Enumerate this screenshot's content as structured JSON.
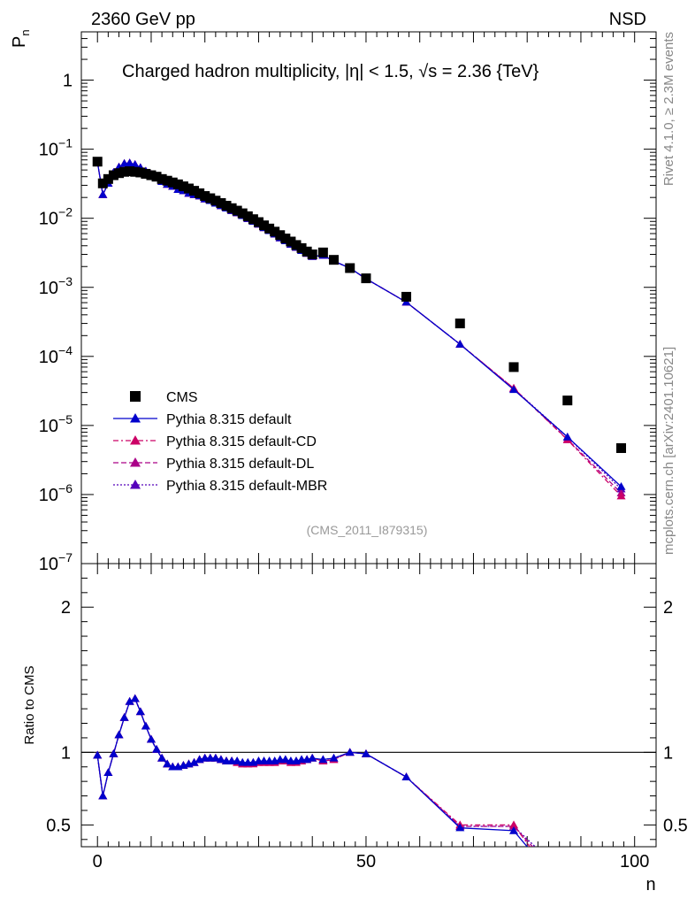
{
  "header": {
    "left": "2360 GeV pp",
    "right": "NSD"
  },
  "side_labels": {
    "rivet": "Rivet 4.1.0, ≥ 2.3M events",
    "mcplots": "mcplots.cern.ch [arXiv:2401.10621]"
  },
  "colors": {
    "data": "#000000",
    "default": "#0000cc",
    "cd": "#cc0066",
    "dl": "#aa0088",
    "mbr": "#5500bb"
  },
  "chart_data": [
    {
      "type": "scatter",
      "panel": "main",
      "title": "Charged hadron multiplicity, |η| < 1.5, √s = 2.36 {TeV}",
      "title_parts": {
        "prefix": "Charged hadron multiplicity,",
        "eta": "|η| < 1.5,",
        "sqrt": "√s",
        "suffix": "= 2.36 {TeV}"
      },
      "ylabel": "P",
      "ylabel_sub": "n",
      "yscale": "log",
      "ylim": [
        1e-07,
        5
      ],
      "xlim": [
        -3,
        104
      ],
      "annotation": "(CMS_2011_I879315)",
      "y_ticks": [
        {
          "value": 1,
          "label": "1",
          "sup": ""
        },
        {
          "value": 0.1,
          "label": "10",
          "sup": "−1"
        },
        {
          "value": 0.01,
          "label": "10",
          "sup": "−2"
        },
        {
          "value": 0.001,
          "label": "10",
          "sup": "−3"
        },
        {
          "value": 0.0001,
          "label": "10",
          "sup": "−4"
        },
        {
          "value": 1e-05,
          "label": "10",
          "sup": "−5"
        },
        {
          "value": 1e-06,
          "label": "10",
          "sup": "−6"
        },
        {
          "value": 1e-07,
          "label": "10",
          "sup": "−7"
        }
      ],
      "legend": [
        "CMS",
        "Pythia 8.315 default",
        "Pythia 8.315 default-CD",
        "Pythia 8.315 default-DL",
        "Pythia 8.315 default-MBR"
      ],
      "data_series": {
        "name": "CMS",
        "x": [
          0,
          1,
          2,
          3,
          4,
          5,
          6,
          7,
          8,
          9,
          10,
          11,
          12,
          13,
          14,
          15,
          16,
          17,
          18,
          19,
          20,
          21,
          22,
          23,
          24,
          25,
          26,
          27,
          28,
          29,
          30,
          31,
          32,
          33,
          34,
          35,
          36,
          37,
          38,
          39,
          40,
          42,
          44,
          47,
          50,
          57.5,
          67.5,
          77.5,
          87.5,
          97.5
        ],
        "y": [
          0.066,
          0.032,
          0.037,
          0.042,
          0.045,
          0.047,
          0.048,
          0.047,
          0.046,
          0.044,
          0.042,
          0.04,
          0.037,
          0.035,
          0.033,
          0.031,
          0.029,
          0.027,
          0.025,
          0.023,
          0.021,
          0.0195,
          0.018,
          0.0166,
          0.0152,
          0.014,
          0.0129,
          0.0118,
          0.0107,
          0.0097,
          0.0088,
          0.0079,
          0.0071,
          0.0064,
          0.0057,
          0.0051,
          0.0046,
          0.0041,
          0.0037,
          0.0033,
          0.003,
          0.0032,
          0.0025,
          0.0019,
          0.00135,
          0.00073,
          0.0003,
          7e-05,
          2.3e-05,
          4.7e-06
        ]
      },
      "mc_series": [
        {
          "name": "Pythia 8.315 default",
          "style": "solid",
          "x": [
            0,
            1,
            2,
            3,
            4,
            5,
            6,
            7,
            8,
            9,
            10,
            11,
            12,
            13,
            14,
            15,
            16,
            17,
            18,
            19,
            20,
            21,
            22,
            23,
            24,
            25,
            26,
            27,
            28,
            29,
            30,
            31,
            32,
            33,
            34,
            35,
            36,
            37,
            38,
            39,
            40,
            42,
            44,
            47,
            50,
            57.5,
            67.5,
            77.5,
            87.5,
            97.5
          ],
          "y": [
            0.065,
            0.022,
            0.032,
            0.046,
            0.055,
            0.062,
            0.063,
            0.06,
            0.054,
            0.048,
            0.043,
            0.039,
            0.034,
            0.031,
            0.029,
            0.026,
            0.025,
            0.023,
            0.022,
            0.021,
            0.019,
            0.018,
            0.0165,
            0.0152,
            0.014,
            0.0129,
            0.012,
            0.0109,
            0.0099,
            0.009,
            0.0082,
            0.0073,
            0.0066,
            0.0059,
            0.0052,
            0.0047,
            0.0042,
            0.0038,
            0.0034,
            0.0031,
            0.0028,
            0.0029,
            0.0024,
            0.0019,
            0.00133,
            0.00061,
            0.00015,
            3.3e-05,
            6.8e-06,
            1.3e-06
          ]
        },
        {
          "name": "Pythia 8.315 default-CD",
          "style": "dashdot",
          "x": [
            0,
            1,
            2,
            3,
            4,
            5,
            6,
            7,
            8,
            9,
            10,
            11,
            12,
            13,
            14,
            15,
            16,
            17,
            18,
            19,
            20,
            21,
            22,
            23,
            24,
            25,
            26,
            27,
            28,
            29,
            30,
            31,
            32,
            33,
            34,
            35,
            36,
            37,
            38,
            39,
            40,
            42,
            44,
            47,
            50,
            57.5,
            67.5,
            77.5,
            87.5,
            97.5
          ],
          "y": [
            0.065,
            0.022,
            0.032,
            0.046,
            0.055,
            0.062,
            0.063,
            0.06,
            0.054,
            0.048,
            0.043,
            0.039,
            0.034,
            0.031,
            0.029,
            0.026,
            0.025,
            0.023,
            0.022,
            0.021,
            0.019,
            0.018,
            0.0165,
            0.0152,
            0.014,
            0.0129,
            0.012,
            0.0109,
            0.0099,
            0.009,
            0.0082,
            0.0073,
            0.0066,
            0.0059,
            0.0052,
            0.0047,
            0.0042,
            0.0038,
            0.0034,
            0.0031,
            0.0028,
            0.0029,
            0.0024,
            0.0019,
            0.00133,
            0.00061,
            0.00015,
            3.45e-05,
            6.2e-06,
            9.5e-07
          ]
        },
        {
          "name": "Pythia 8.315 default-DL",
          "style": "dashed",
          "x": [
            0,
            1,
            2,
            3,
            4,
            5,
            6,
            7,
            8,
            9,
            10,
            11,
            12,
            13,
            14,
            15,
            16,
            17,
            18,
            19,
            20,
            21,
            22,
            23,
            24,
            25,
            26,
            27,
            28,
            29,
            30,
            31,
            32,
            33,
            34,
            35,
            36,
            37,
            38,
            39,
            40,
            42,
            44,
            47,
            50,
            57.5,
            67.5,
            77.5,
            87.5,
            97.5
          ],
          "y": [
            0.065,
            0.022,
            0.032,
            0.046,
            0.055,
            0.062,
            0.063,
            0.06,
            0.054,
            0.048,
            0.043,
            0.039,
            0.034,
            0.031,
            0.029,
            0.026,
            0.025,
            0.023,
            0.022,
            0.021,
            0.019,
            0.018,
            0.0165,
            0.0152,
            0.014,
            0.0129,
            0.012,
            0.0109,
            0.0099,
            0.009,
            0.0082,
            0.0073,
            0.0066,
            0.0059,
            0.0052,
            0.0047,
            0.0042,
            0.0038,
            0.0034,
            0.0031,
            0.0028,
            0.0029,
            0.0024,
            0.0019,
            0.00133,
            0.00061,
            0.00015,
            3.45e-05,
            6.3e-06,
            1.05e-06
          ]
        },
        {
          "name": "Pythia 8.315 default-MBR",
          "style": "dotted",
          "x": [
            0,
            1,
            2,
            3,
            4,
            5,
            6,
            7,
            8,
            9,
            10,
            11,
            12,
            13,
            14,
            15,
            16,
            17,
            18,
            19,
            20,
            21,
            22,
            23,
            24,
            25,
            26,
            27,
            28,
            29,
            30,
            31,
            32,
            33,
            34,
            35,
            36,
            37,
            38,
            39,
            40,
            42,
            44,
            47,
            50,
            57.5,
            67.5,
            77.5,
            87.5,
            97.5
          ],
          "y": [
            0.065,
            0.022,
            0.032,
            0.046,
            0.055,
            0.062,
            0.063,
            0.06,
            0.054,
            0.048,
            0.043,
            0.039,
            0.034,
            0.031,
            0.029,
            0.026,
            0.025,
            0.023,
            0.022,
            0.021,
            0.019,
            0.018,
            0.0165,
            0.0152,
            0.014,
            0.0129,
            0.012,
            0.0109,
            0.0099,
            0.009,
            0.0082,
            0.0073,
            0.0066,
            0.0059,
            0.0052,
            0.0047,
            0.0042,
            0.0038,
            0.0034,
            0.0031,
            0.0028,
            0.0029,
            0.0024,
            0.0019,
            0.00133,
            0.00061,
            0.00015,
            3.4e-05,
            6.8e-06,
            1.2e-06
          ]
        }
      ]
    },
    {
      "type": "line",
      "panel": "ratio",
      "xlabel": "n",
      "ylabel": "Ratio to CMS",
      "ylim": [
        0.35,
        2.3
      ],
      "xlim": [
        -3,
        104
      ],
      "reference_line": 1,
      "y_ticks": [
        0.5,
        1,
        2
      ],
      "y_tick_labels": [
        "0.5",
        "1",
        "2"
      ],
      "x_ticks": [
        0,
        50,
        100
      ],
      "x_tick_labels": [
        "0",
        "50",
        "100"
      ],
      "series": [
        {
          "name": "Pythia 8.315 default",
          "x": [
            0,
            1,
            2,
            3,
            4,
            5,
            6,
            7,
            8,
            9,
            10,
            11,
            12,
            13,
            14,
            15,
            16,
            17,
            18,
            19,
            20,
            21,
            22,
            23,
            24,
            25,
            26,
            27,
            28,
            29,
            30,
            31,
            32,
            33,
            34,
            35,
            36,
            37,
            38,
            39,
            40,
            42,
            44,
            47,
            50,
            57.5,
            67.5,
            77.5,
            80
          ],
          "values": [
            0.98,
            0.7,
            0.86,
            0.99,
            1.12,
            1.24,
            1.35,
            1.37,
            1.28,
            1.18,
            1.09,
            1.02,
            0.96,
            0.92,
            0.9,
            0.9,
            0.91,
            0.92,
            0.93,
            0.95,
            0.96,
            0.96,
            0.96,
            0.95,
            0.94,
            0.94,
            0.94,
            0.93,
            0.93,
            0.93,
            0.94,
            0.94,
            0.94,
            0.94,
            0.95,
            0.95,
            0.94,
            0.94,
            0.95,
            0.95,
            0.96,
            0.95,
            0.96,
            1.0,
            0.99,
            0.83,
            0.48,
            0.46,
            0.35
          ]
        },
        {
          "name": "Pythia 8.315 default-CD",
          "x": [
            0,
            1,
            2,
            3,
            4,
            5,
            6,
            7,
            8,
            9,
            10,
            11,
            12,
            13,
            14,
            15,
            16,
            17,
            18,
            19,
            20,
            21,
            22,
            23,
            24,
            25,
            26,
            27,
            28,
            29,
            30,
            31,
            32,
            33,
            34,
            35,
            36,
            37,
            38,
            39,
            40,
            42,
            44,
            47,
            50,
            57.5,
            67.5,
            77.5,
            80.5
          ],
          "values": [
            0.98,
            0.7,
            0.86,
            0.99,
            1.12,
            1.24,
            1.35,
            1.37,
            1.28,
            1.18,
            1.09,
            1.02,
            0.96,
            0.92,
            0.9,
            0.9,
            0.91,
            0.92,
            0.93,
            0.95,
            0.96,
            0.96,
            0.96,
            0.95,
            0.94,
            0.94,
            0.93,
            0.92,
            0.92,
            0.92,
            0.93,
            0.93,
            0.93,
            0.93,
            0.94,
            0.94,
            0.93,
            0.93,
            0.94,
            0.95,
            0.96,
            0.94,
            0.95,
            1.0,
            0.99,
            0.83,
            0.5,
            0.5,
            0.35
          ]
        },
        {
          "name": "Pythia 8.315 default-DL",
          "x": [
            0,
            1,
            2,
            3,
            4,
            5,
            6,
            7,
            8,
            9,
            10,
            11,
            12,
            13,
            14,
            15,
            16,
            17,
            18,
            19,
            20,
            21,
            22,
            23,
            24,
            25,
            26,
            27,
            28,
            29,
            30,
            31,
            32,
            33,
            34,
            35,
            36,
            37,
            38,
            39,
            40,
            42,
            44,
            47,
            50,
            57.5,
            67.5,
            77.5,
            81
          ],
          "values": [
            0.98,
            0.7,
            0.86,
            0.99,
            1.12,
            1.24,
            1.35,
            1.37,
            1.28,
            1.18,
            1.09,
            1.02,
            0.96,
            0.92,
            0.9,
            0.9,
            0.91,
            0.92,
            0.93,
            0.95,
            0.96,
            0.96,
            0.96,
            0.95,
            0.94,
            0.94,
            0.93,
            0.92,
            0.92,
            0.93,
            0.93,
            0.93,
            0.93,
            0.93,
            0.94,
            0.94,
            0.93,
            0.94,
            0.94,
            0.95,
            0.96,
            0.94,
            0.95,
            1.0,
            0.99,
            0.83,
            0.49,
            0.49,
            0.35
          ]
        },
        {
          "name": "Pythia 8.315 default-MBR",
          "x": [
            0,
            1,
            2,
            3,
            4,
            5,
            6,
            7,
            8,
            9,
            10,
            11,
            12,
            13,
            14,
            15,
            16,
            17,
            18,
            19,
            20,
            21,
            22,
            23,
            24,
            25,
            26,
            27,
            28,
            29,
            30,
            31,
            32,
            33,
            34,
            35,
            36,
            37,
            38,
            39,
            40,
            42,
            44,
            47,
            50,
            57.5,
            67.5,
            77.5,
            81.5
          ],
          "values": [
            0.98,
            0.7,
            0.86,
            0.99,
            1.12,
            1.24,
            1.35,
            1.37,
            1.28,
            1.18,
            1.09,
            1.02,
            0.96,
            0.92,
            0.9,
            0.9,
            0.91,
            0.92,
            0.93,
            0.95,
            0.96,
            0.96,
            0.96,
            0.95,
            0.94,
            0.94,
            0.94,
            0.93,
            0.93,
            0.93,
            0.94,
            0.94,
            0.94,
            0.94,
            0.95,
            0.95,
            0.94,
            0.94,
            0.95,
            0.95,
            0.96,
            0.95,
            0.96,
            1.0,
            0.99,
            0.83,
            0.49,
            0.49,
            0.35
          ]
        }
      ]
    }
  ]
}
